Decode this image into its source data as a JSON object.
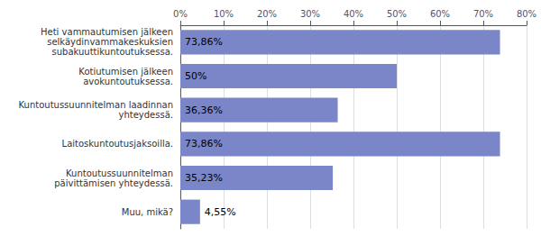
{
  "chart_data": {
    "type": "bar",
    "orientation": "horizontal",
    "categories": [
      "Muu, mikä?",
      "Kuntoutussuunnitelman\npäivittämisen yhteydessä.",
      "Laitoskuntoutusjaksoilla.",
      "Kuntoutussuunnitelman laadinnan\nyhteydessä.",
      "Kotiutumisen jälkeen\navokuntoutuksessa.",
      "Heti vammautumisen jälkeen\nselkäydinvammakeskuksien\nsubakuuttikuntoutuksessa."
    ],
    "values": [
      4.55,
      35.23,
      73.86,
      36.36,
      50.0,
      73.86
    ],
    "value_labels": [
      "4,55%",
      "35,23%",
      "73,86%",
      "36,36%",
      "50%",
      "73,86%"
    ],
    "data_labels": true,
    "color": "#7b86c8",
    "xlim": [
      0,
      80
    ],
    "xticks": [
      {
        "value": 0,
        "label": "0%"
      },
      {
        "value": 10,
        "label": "10%"
      },
      {
        "value": 20,
        "label": "20%"
      },
      {
        "value": 30,
        "label": "30%"
      },
      {
        "value": 40,
        "label": "40%"
      },
      {
        "value": 50,
        "label": "50%"
      },
      {
        "value": 60,
        "label": "60%"
      },
      {
        "value": 70,
        "label": "70%"
      },
      {
        "value": 80,
        "label": "80%"
      }
    ],
    "grid": true
  }
}
